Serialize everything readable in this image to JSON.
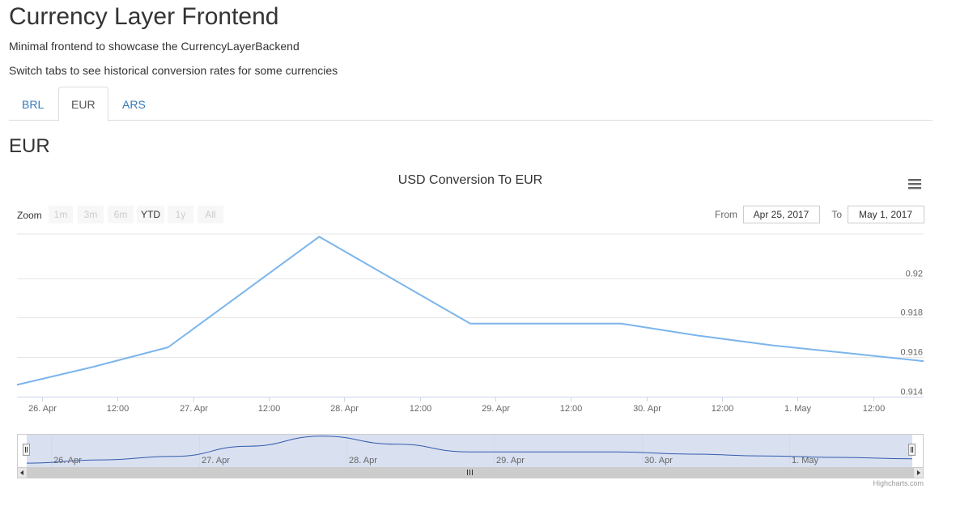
{
  "header": {
    "title": "Currency Layer Frontend",
    "lead1": "Minimal frontend to showcase the CurrencyLayerBackend",
    "lead2": "Switch tabs to see historical conversion rates for some currencies"
  },
  "tabs": [
    {
      "label": "BRL",
      "active": false
    },
    {
      "label": "EUR",
      "active": true
    },
    {
      "label": "ARS",
      "active": false
    }
  ],
  "section": {
    "title": "EUR"
  },
  "toolbar": {
    "zoom_label": "Zoom",
    "zoom_buttons": [
      {
        "label": "1m",
        "enabled": false
      },
      {
        "label": "3m",
        "enabled": false
      },
      {
        "label": "6m",
        "enabled": false
      },
      {
        "label": "YTD",
        "enabled": true
      },
      {
        "label": "1y",
        "enabled": false
      },
      {
        "label": "All",
        "enabled": false
      }
    ],
    "from_label": "From",
    "from_value": "Apr 25, 2017",
    "to_label": "To",
    "to_value": "May 1, 2017",
    "menu_icon": "hamburger-menu-icon"
  },
  "credits": "Highcharts.com",
  "colors": {
    "series": "#7cb5ec",
    "navigator_series": "#335cad",
    "navigator_mask": "#ccd6eb",
    "link": "#337ab7"
  },
  "chart_data": {
    "type": "line",
    "title": "USD Conversion To EUR",
    "x": [
      0,
      12,
      24,
      36,
      48,
      60,
      72,
      84,
      96,
      108,
      120,
      132,
      144
    ],
    "x_unit": "hours from Apr 25, 2017 00:00",
    "series": [
      {
        "values": [
          0.9146,
          0.9155,
          0.9165,
          0.9193,
          0.9221,
          0.9199,
          0.9177,
          0.9177,
          0.9177,
          0.9171,
          0.9166,
          0.9162,
          0.9158
        ]
      }
    ],
    "x_tick_labels": [
      {
        "label": "26. Apr",
        "x": 4
      },
      {
        "label": "12:00",
        "x": 16
      },
      {
        "label": "27. Apr",
        "x": 28
      },
      {
        "label": "12:00",
        "x": 40
      },
      {
        "label": "28. Apr",
        "x": 52
      },
      {
        "label": "12:00",
        "x": 64
      },
      {
        "label": "29. Apr",
        "x": 76
      },
      {
        "label": "12:00",
        "x": 88
      },
      {
        "label": "30. Apr",
        "x": 100
      },
      {
        "label": "12:00",
        "x": 112
      },
      {
        "label": "1. May",
        "x": 124
      },
      {
        "label": "12:00",
        "x": 136
      }
    ],
    "y_tick_labels": [
      "0.914",
      "0.916",
      "0.918",
      "0.92"
    ],
    "y_ticks": [
      0.914,
      0.916,
      0.918,
      0.92
    ],
    "xlim": [
      0,
      144
    ],
    "ylim": [
      0.914,
      0.9222
    ],
    "grid": true,
    "yaxis_side": "right",
    "navigator": {
      "tick_labels": [
        {
          "label": "26. Apr",
          "x": 4
        },
        {
          "label": "27. Apr",
          "x": 28
        },
        {
          "label": "28. Apr",
          "x": 52
        },
        {
          "label": "29. Apr",
          "x": 76
        },
        {
          "label": "30. Apr",
          "x": 100
        },
        {
          "label": "1. May",
          "x": 124
        }
      ]
    }
  }
}
